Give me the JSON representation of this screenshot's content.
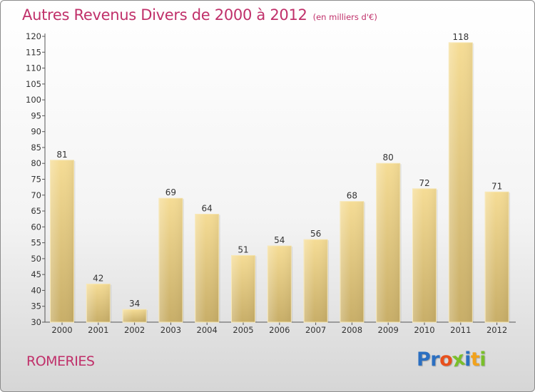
{
  "title": {
    "main": "Autres Revenus Divers de 2000 à 2012",
    "unit": "(en milliers d'€)"
  },
  "place": "ROMERIES",
  "logo": {
    "letters": [
      "P",
      "r",
      "o",
      "x",
      "i",
      "t",
      "i"
    ],
    "colors": [
      "#2b6fc1",
      "#2b6fc1",
      "#e8501c",
      "#7abf2a",
      "#2b6fc1",
      "#f2a21b",
      "#7abf2a"
    ]
  },
  "colors": {
    "accent": "#c0306a",
    "bar_light": "#f5dc95",
    "bar_dark": "#c8ae68"
  },
  "chart_data": {
    "type": "bar",
    "title": "Autres Revenus Divers de 2000 à 2012",
    "subtitle": "(en milliers d'€)",
    "categories": [
      "2000",
      "2001",
      "2002",
      "2003",
      "2004",
      "2005",
      "2006",
      "2007",
      "2008",
      "2009",
      "2010",
      "2011",
      "2012"
    ],
    "values": [
      81,
      42,
      34,
      69,
      64,
      51,
      54,
      56,
      68,
      80,
      72,
      118,
      71
    ],
    "ylim": [
      30,
      120
    ],
    "yticks": [
      30,
      35,
      40,
      45,
      50,
      55,
      60,
      65,
      70,
      75,
      80,
      85,
      90,
      95,
      100,
      105,
      110,
      115,
      120
    ],
    "grid": false,
    "legend": "none"
  }
}
